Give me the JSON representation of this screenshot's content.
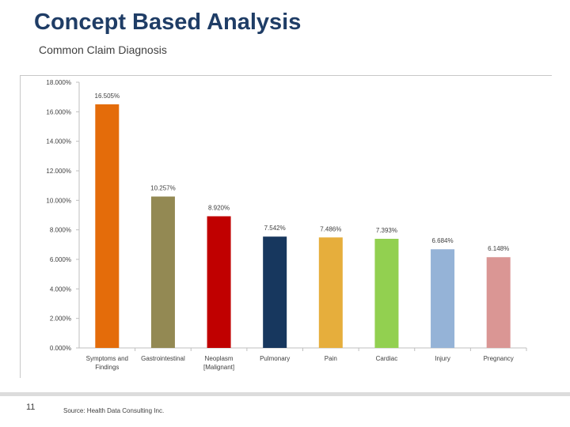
{
  "slide": {
    "title": "Concept Based Analysis",
    "subtitle": "Common Claim Diagnosis",
    "page_number": "11",
    "source": "Source: Health Data Consulting Inc."
  },
  "chart_data": {
    "type": "bar",
    "title": "",
    "xlabel": "",
    "ylabel": "",
    "ylim": [
      0,
      18
    ],
    "y_ticks": [
      0,
      2,
      4,
      6,
      8,
      10,
      12,
      14,
      16,
      18
    ],
    "y_tick_labels": [
      "0.000%",
      "2.000%",
      "4.000%",
      "6.000%",
      "8.000%",
      "10.000%",
      "12.000%",
      "14.000%",
      "16.000%",
      "18.000%"
    ],
    "grid": false,
    "legend": "none",
    "categories": [
      [
        "Symptoms and",
        "Findings"
      ],
      [
        "Gastrointestinal"
      ],
      [
        "Neoplasm",
        "[Malignant]"
      ],
      [
        "Pulmonary"
      ],
      [
        "Pain"
      ],
      [
        "Cardiac"
      ],
      [
        "Injury"
      ],
      [
        "Pregnancy"
      ]
    ],
    "values": [
      16.505,
      10.257,
      8.92,
      7.542,
      7.486,
      7.393,
      6.684,
      6.148
    ],
    "data_labels": [
      "16.505%",
      "10.257%",
      "8.920%",
      "7.542%",
      "7.486%",
      "7.393%",
      "6.684%",
      "6.148%"
    ],
    "colors": [
      "#e46c0a",
      "#938953",
      "#c00000",
      "#17375e",
      "#e6ae3c",
      "#92d050",
      "#95b3d7",
      "#da9694"
    ]
  }
}
